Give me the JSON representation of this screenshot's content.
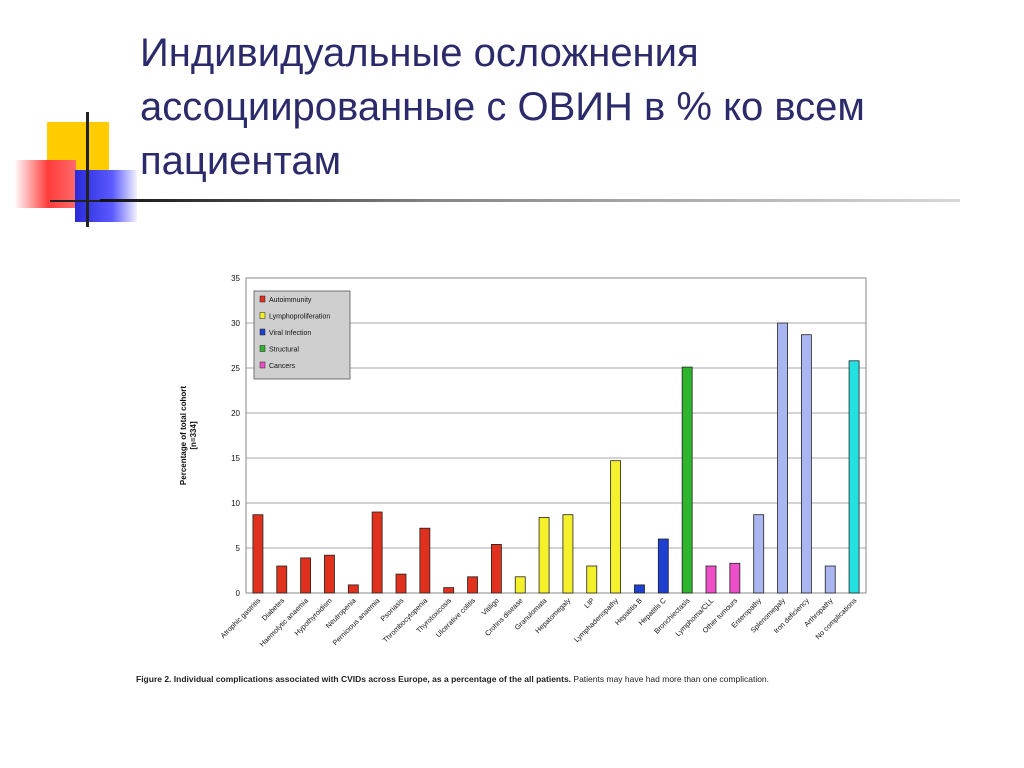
{
  "slide": {
    "title": "Индивидуальные осложнения ассоциированные с ОВИН в % ко всем пациентам"
  },
  "caption": {
    "bold": "Figure 2. Individual complications associated with CVIDs across Europe, as a percentage of the all patients.",
    "normal": " Patients may have had more than one complication."
  },
  "colors": {
    "Autoimmunity": "#e0301e",
    "Lymphoproliferation": "#f4f02a",
    "Viral Infection": "#1f3fd0",
    "Structural": "#2db52d",
    "Cancers": "#ee4fc8",
    "Other": "#a9b6f0",
    "No complications": "#24e0e0"
  },
  "chart_data": {
    "type": "bar",
    "ylabel": "Percentage of total cohort",
    "ylabel2": "[n=334]",
    "ylim": [
      0,
      35
    ],
    "yticks": [
      0,
      5,
      10,
      15,
      20,
      25,
      30,
      35
    ],
    "grid": true,
    "legend_position": "top-left",
    "legend": [
      "Autoimmunity",
      "Lymphoproliferation",
      "Viral Infection",
      "Structural",
      "Cancers"
    ],
    "categories": [
      "Atrophic gastritis",
      "Diabetes",
      "Haemolytic anaemia",
      "Hypothyroidism",
      "Neutropenia",
      "Pernicious anaemia",
      "Psoriasis",
      "Thrombocytopenia",
      "Thyrotoxicosis",
      "Ulcerative colitis",
      "Vitiligo",
      "Crohns disease",
      "Granulomata",
      "Hepatomegaly",
      "LIP",
      "Lymphadenopathy",
      "Hepatitis B",
      "Hepatitis C",
      "Bronchiectasis",
      "Lymphoma/CLL",
      "Other tumours",
      "Enteropathy",
      "Splenomegaly",
      "Iron deficiency",
      "Arthropathy",
      "No complications"
    ],
    "values": [
      8.7,
      3.0,
      3.9,
      4.2,
      0.9,
      9.0,
      2.1,
      7.2,
      0.6,
      1.8,
      5.4,
      1.8,
      8.4,
      8.7,
      3.0,
      14.7,
      0.9,
      6.0,
      25.1,
      3.0,
      3.3,
      8.7,
      30.0,
      28.7,
      3.0,
      25.8
    ],
    "groups": [
      "Autoimmunity",
      "Autoimmunity",
      "Autoimmunity",
      "Autoimmunity",
      "Autoimmunity",
      "Autoimmunity",
      "Autoimmunity",
      "Autoimmunity",
      "Autoimmunity",
      "Autoimmunity",
      "Autoimmunity",
      "Lymphoproliferation",
      "Lymphoproliferation",
      "Lymphoproliferation",
      "Lymphoproliferation",
      "Lymphoproliferation",
      "Viral Infection",
      "Viral Infection",
      "Structural",
      "Cancers",
      "Cancers",
      "Other",
      "Other",
      "Other",
      "Other",
      "No complications"
    ]
  }
}
